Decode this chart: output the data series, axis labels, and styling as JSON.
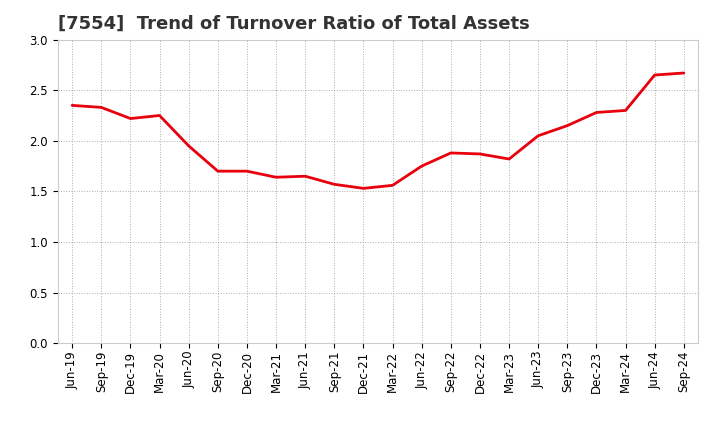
{
  "title": "[7554]  Trend of Turnover Ratio of Total Assets",
  "x_labels": [
    "Jun-19",
    "Sep-19",
    "Dec-19",
    "Mar-20",
    "Jun-20",
    "Sep-20",
    "Dec-20",
    "Mar-21",
    "Jun-21",
    "Sep-21",
    "Dec-21",
    "Mar-22",
    "Jun-22",
    "Sep-22",
    "Dec-22",
    "Mar-23",
    "Jun-23",
    "Sep-23",
    "Dec-23",
    "Mar-24",
    "Jun-24",
    "Sep-24"
  ],
  "values": [
    2.35,
    2.33,
    2.22,
    2.25,
    1.95,
    1.7,
    1.7,
    1.64,
    1.65,
    1.57,
    1.53,
    1.56,
    1.75,
    1.88,
    1.87,
    1.82,
    2.05,
    2.15,
    2.28,
    2.3,
    2.65,
    2.67
  ],
  "line_color": "#e8000d",
  "line_width": 2.0,
  "ylim": [
    0.0,
    3.0
  ],
  "yticks": [
    0.0,
    0.5,
    1.0,
    1.5,
    2.0,
    2.5,
    3.0
  ],
  "background_color": "#ffffff",
  "grid_color": "#999999",
  "title_fontsize": 13,
  "tick_fontsize": 8.5,
  "title_color": "#333333"
}
